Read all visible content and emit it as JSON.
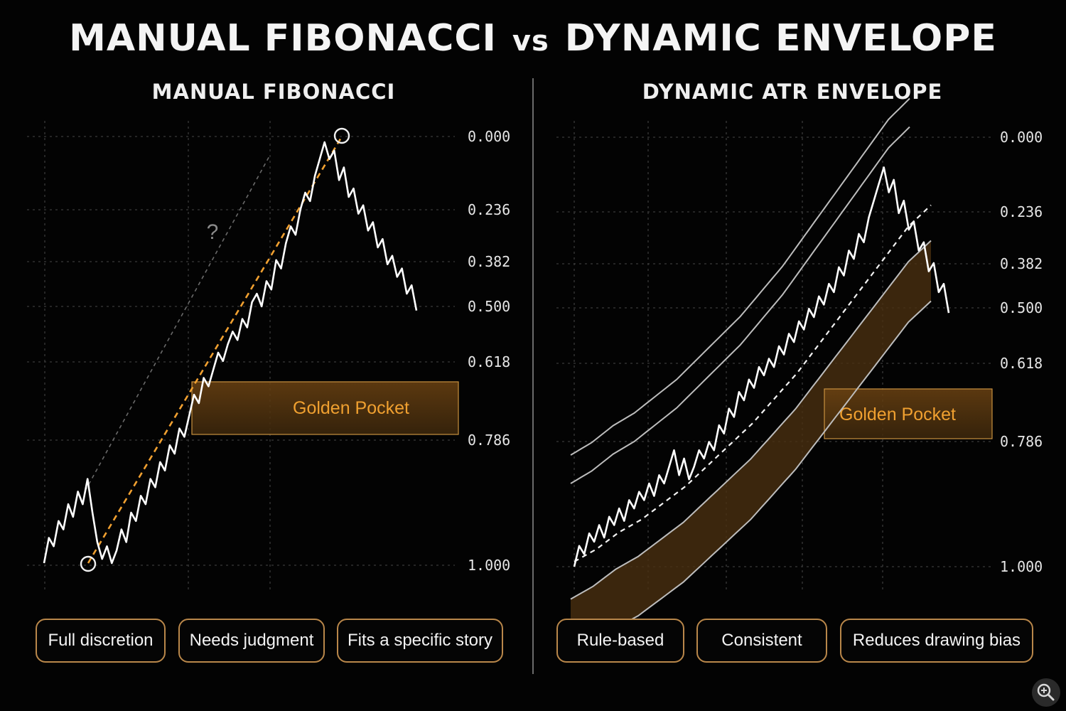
{
  "title": {
    "left": "MANUAL FIBONACCI",
    "vs": "vs",
    "right": "DYNAMIC ENVELOPE"
  },
  "colors": {
    "accent": "#f0a030",
    "pocket_fill": "#5a3a10",
    "line": "#ffffff",
    "grid": "#3a3a3a",
    "envelope": "#bdbdbd"
  },
  "chart_data": [
    {
      "type": "line",
      "title": "MANUAL FIBONACCI",
      "fib_levels": [
        "0.000",
        "0.236",
        "0.382",
        "0.500",
        "0.618",
        "0.786",
        "1.000"
      ],
      "zone_label": "Golden Pocket",
      "annotation": "?",
      "series": [
        {
          "values": [
            1.0,
            0.94,
            0.96,
            0.9,
            0.92,
            0.86,
            0.89,
            0.83,
            0.86,
            0.8,
            0.88,
            0.95,
            0.99,
            0.96,
            1.0,
            0.97,
            0.92,
            0.95,
            0.88,
            0.9,
            0.84,
            0.86,
            0.8,
            0.82,
            0.76,
            0.78,
            0.72,
            0.74,
            0.68,
            0.7,
            0.65,
            0.6,
            0.62,
            0.56,
            0.58,
            0.54,
            0.5,
            0.52,
            0.48,
            0.45,
            0.47,
            0.42,
            0.44,
            0.38,
            0.36,
            0.39,
            0.33,
            0.35,
            0.28,
            0.3,
            0.24,
            0.2,
            0.22,
            0.16,
            0.12,
            0.14,
            0.08,
            0.04,
            0.0,
            0.04,
            0.02,
            0.09,
            0.06,
            0.13,
            0.11,
            0.17,
            0.15,
            0.21,
            0.19,
            0.25,
            0.23,
            0.29,
            0.27,
            0.32,
            0.3,
            0.36,
            0.34,
            0.4
          ]
        }
      ]
    },
    {
      "type": "line",
      "title": "DYNAMIC ATR ENVELOPE",
      "fib_levels": [
        "0.000",
        "0.236",
        "0.382",
        "0.500",
        "0.618",
        "0.786",
        "1.000"
      ],
      "zone_label": "Golden Pocket",
      "series": [
        {
          "values": [
            1.0,
            0.95,
            0.97,
            0.92,
            0.94,
            0.9,
            0.93,
            0.88,
            0.9,
            0.86,
            0.89,
            0.84,
            0.86,
            0.82,
            0.84,
            0.8,
            0.83,
            0.78,
            0.8,
            0.76,
            0.72,
            0.78,
            0.74,
            0.79,
            0.76,
            0.72,
            0.74,
            0.7,
            0.72,
            0.66,
            0.68,
            0.62,
            0.64,
            0.58,
            0.6,
            0.55,
            0.57,
            0.52,
            0.54,
            0.5,
            0.52,
            0.47,
            0.49,
            0.44,
            0.46,
            0.41,
            0.43,
            0.38,
            0.4,
            0.35,
            0.37,
            0.32,
            0.34,
            0.28,
            0.3,
            0.24,
            0.26,
            0.2,
            0.22,
            0.16,
            0.12,
            0.08,
            0.04,
            0.1,
            0.07,
            0.15,
            0.12,
            0.19,
            0.17,
            0.24,
            0.22,
            0.29,
            0.27,
            0.34,
            0.32,
            0.39
          ]
        },
        {
          "values": [
            1.0,
            0.97,
            0.93,
            0.9,
            0.86,
            0.82,
            0.77,
            0.72,
            0.67,
            0.61,
            0.55,
            0.48,
            0.41,
            0.34,
            0.27,
            0.2,
            0.15
          ]
        }
      ]
    }
  ],
  "pills": {
    "left": [
      "Full discretion",
      "Needs judgment",
      "Fits a specific story"
    ],
    "right": [
      "Rule-based",
      "Consistent",
      "Reduces drawing bias"
    ]
  },
  "zoom_icon": "zoom-in-icon"
}
